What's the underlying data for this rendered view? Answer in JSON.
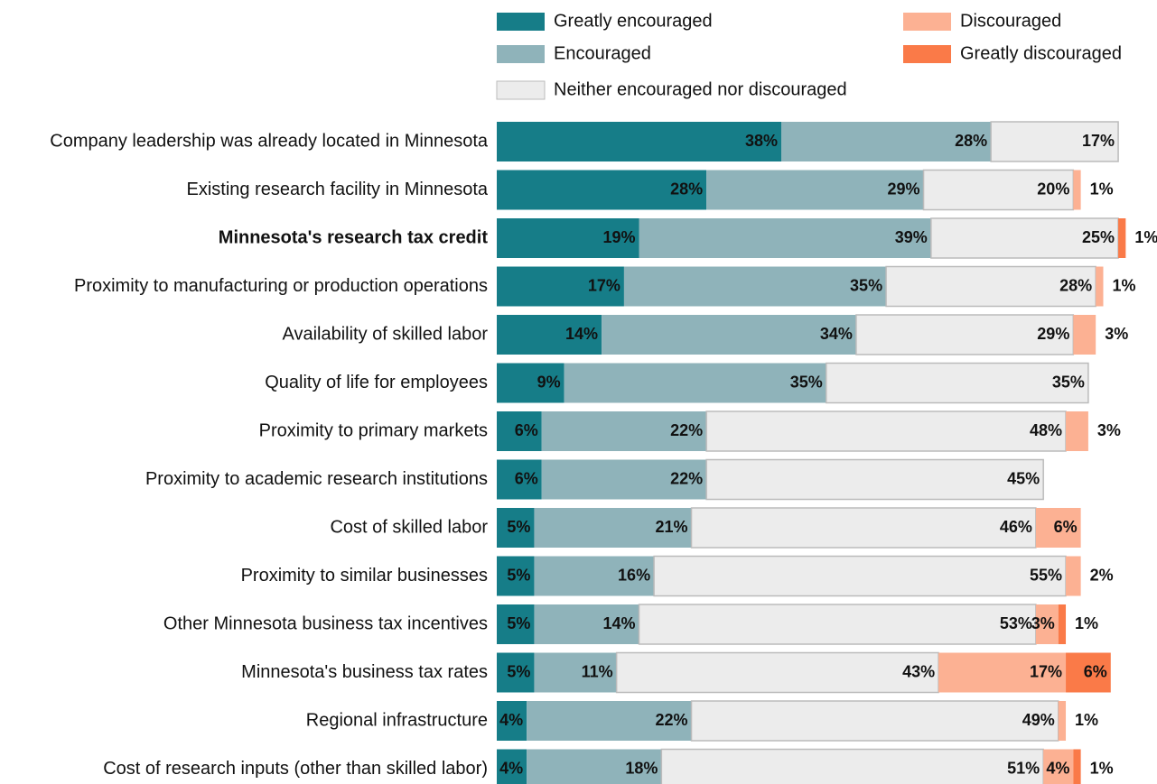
{
  "chart_data": {
    "type": "stacked-barh",
    "categories": [
      "Company leadership was already located in Minnesota",
      "Existing research facility in Minnesota",
      "Minnesota's research tax credit",
      "Proximity to manufacturing or production operations",
      "Availability of skilled labor",
      "Quality of life for employees",
      "Proximity to primary markets",
      "Proximity to academic research institutions",
      "Cost of skilled labor",
      "Proximity to similar businesses",
      "Other Minnesota business tax incentives",
      "Minnesota's business tax rates",
      "Regional infrastructure",
      "Cost of research inputs (other than skilled labor)"
    ],
    "highlight_index": 2,
    "xlim": [
      0,
      100
    ],
    "series": [
      {
        "name": "Greatly encouraged",
        "color": "#167d88",
        "label_color": "#ffffff",
        "values": [
          38,
          28,
          19,
          17,
          14,
          9,
          6,
          6,
          5,
          5,
          5,
          5,
          4,
          4
        ],
        "value_labels": [
          "38%",
          "28%",
          "19%",
          "17%",
          "14%",
          "9%",
          "6%",
          "6%",
          "5%",
          "5%",
          "5%",
          "5%",
          "4%",
          "4%"
        ]
      },
      {
        "name": "Encouraged",
        "color": "#8fb3ba",
        "label_color": "#111111",
        "values": [
          28,
          29,
          39,
          35,
          34,
          35,
          22,
          22,
          21,
          16,
          14,
          11,
          22,
          18
        ],
        "value_labels": [
          "28%",
          "29%",
          "39%",
          "35%",
          "34%",
          "35%",
          "22%",
          "22%",
          "21%",
          "16%",
          "14%",
          "11%",
          "22%",
          "18%"
        ]
      },
      {
        "name": "Neither encouraged nor discouraged",
        "color": "#ececec",
        "label_color": "#111111",
        "values": [
          17,
          20,
          25,
          28,
          29,
          35,
          48,
          45,
          46,
          55,
          53,
          43,
          49,
          51
        ],
        "value_labels": [
          "17%",
          "20%",
          "25%",
          "28%",
          "29%",
          "35%",
          "48%",
          "45%",
          "46%",
          "55%",
          "53%",
          "43%",
          "49%",
          "51%"
        ]
      },
      {
        "name": "Discouraged",
        "color": "#fcb193",
        "label_color": "#111111",
        "values": [
          null,
          1,
          null,
          1,
          3,
          null,
          3,
          null,
          6,
          2,
          3,
          17,
          1,
          4
        ],
        "value_labels": [
          null,
          "1%",
          null,
          "1%",
          "3%",
          null,
          "3%",
          null,
          "6%",
          "2%",
          "3%",
          "17%",
          "1%",
          "4%"
        ]
      },
      {
        "name": "Greatly discouraged",
        "color": "#fa7a48",
        "label_color": "#111111",
        "values": [
          null,
          null,
          1,
          null,
          null,
          null,
          null,
          null,
          null,
          null,
          1,
          6,
          null,
          1
        ],
        "value_labels": [
          null,
          null,
          "1%",
          null,
          null,
          null,
          null,
          null,
          null,
          null,
          "1%",
          "6%",
          null,
          "1%"
        ]
      }
    ]
  }
}
